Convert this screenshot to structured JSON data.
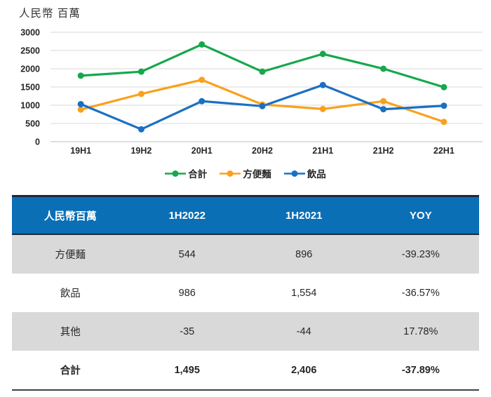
{
  "chart_data": [
    {
      "type": "line",
      "title": "人民幣 百萬",
      "categories": [
        "19H1",
        "19H2",
        "20H1",
        "20H2",
        "21H1",
        "21H2",
        "22H1"
      ],
      "series": [
        {
          "name": "合計",
          "color": "#15a84c",
          "values": [
            1810,
            1920,
            2665,
            1920,
            2406,
            2000,
            1495
          ]
        },
        {
          "name": "方便麵",
          "color": "#f9a11d",
          "values": [
            880,
            1310,
            1695,
            1020,
            896,
            1110,
            544
          ]
        },
        {
          "name": "飲品",
          "color": "#1b70c2",
          "values": [
            1030,
            340,
            1110,
            975,
            1554,
            890,
            986
          ]
        }
      ],
      "ylim": [
        0,
        3000
      ],
      "ytick_step": 500,
      "grid": true,
      "legend_position": "bottom",
      "gridline_color": "#d9d9d9",
      "axis_line_color": "#bfbfbf"
    },
    {
      "type": "table",
      "columns": [
        "人民幣百萬",
        "1H2022",
        "1H2021",
        "YOY"
      ],
      "rows": [
        {
          "cells": [
            "方便麵",
            "544",
            "896",
            "-39.23%"
          ]
        },
        {
          "cells": [
            "飲品",
            "986",
            "1,554",
            "-36.57%"
          ]
        },
        {
          "cells": [
            "其他",
            "-35",
            "-44",
            "17.78%"
          ]
        },
        {
          "cells": [
            "合計",
            "1,495",
            "2,406",
            "-37.89%"
          ]
        }
      ],
      "header_bg": "#0b6fb5",
      "header_text_color": "#ffffff",
      "row_alt_bg": "#d9d9d9",
      "top_border_color": "#1b2a3c",
      "bottom_border_color": "#404040"
    }
  ]
}
